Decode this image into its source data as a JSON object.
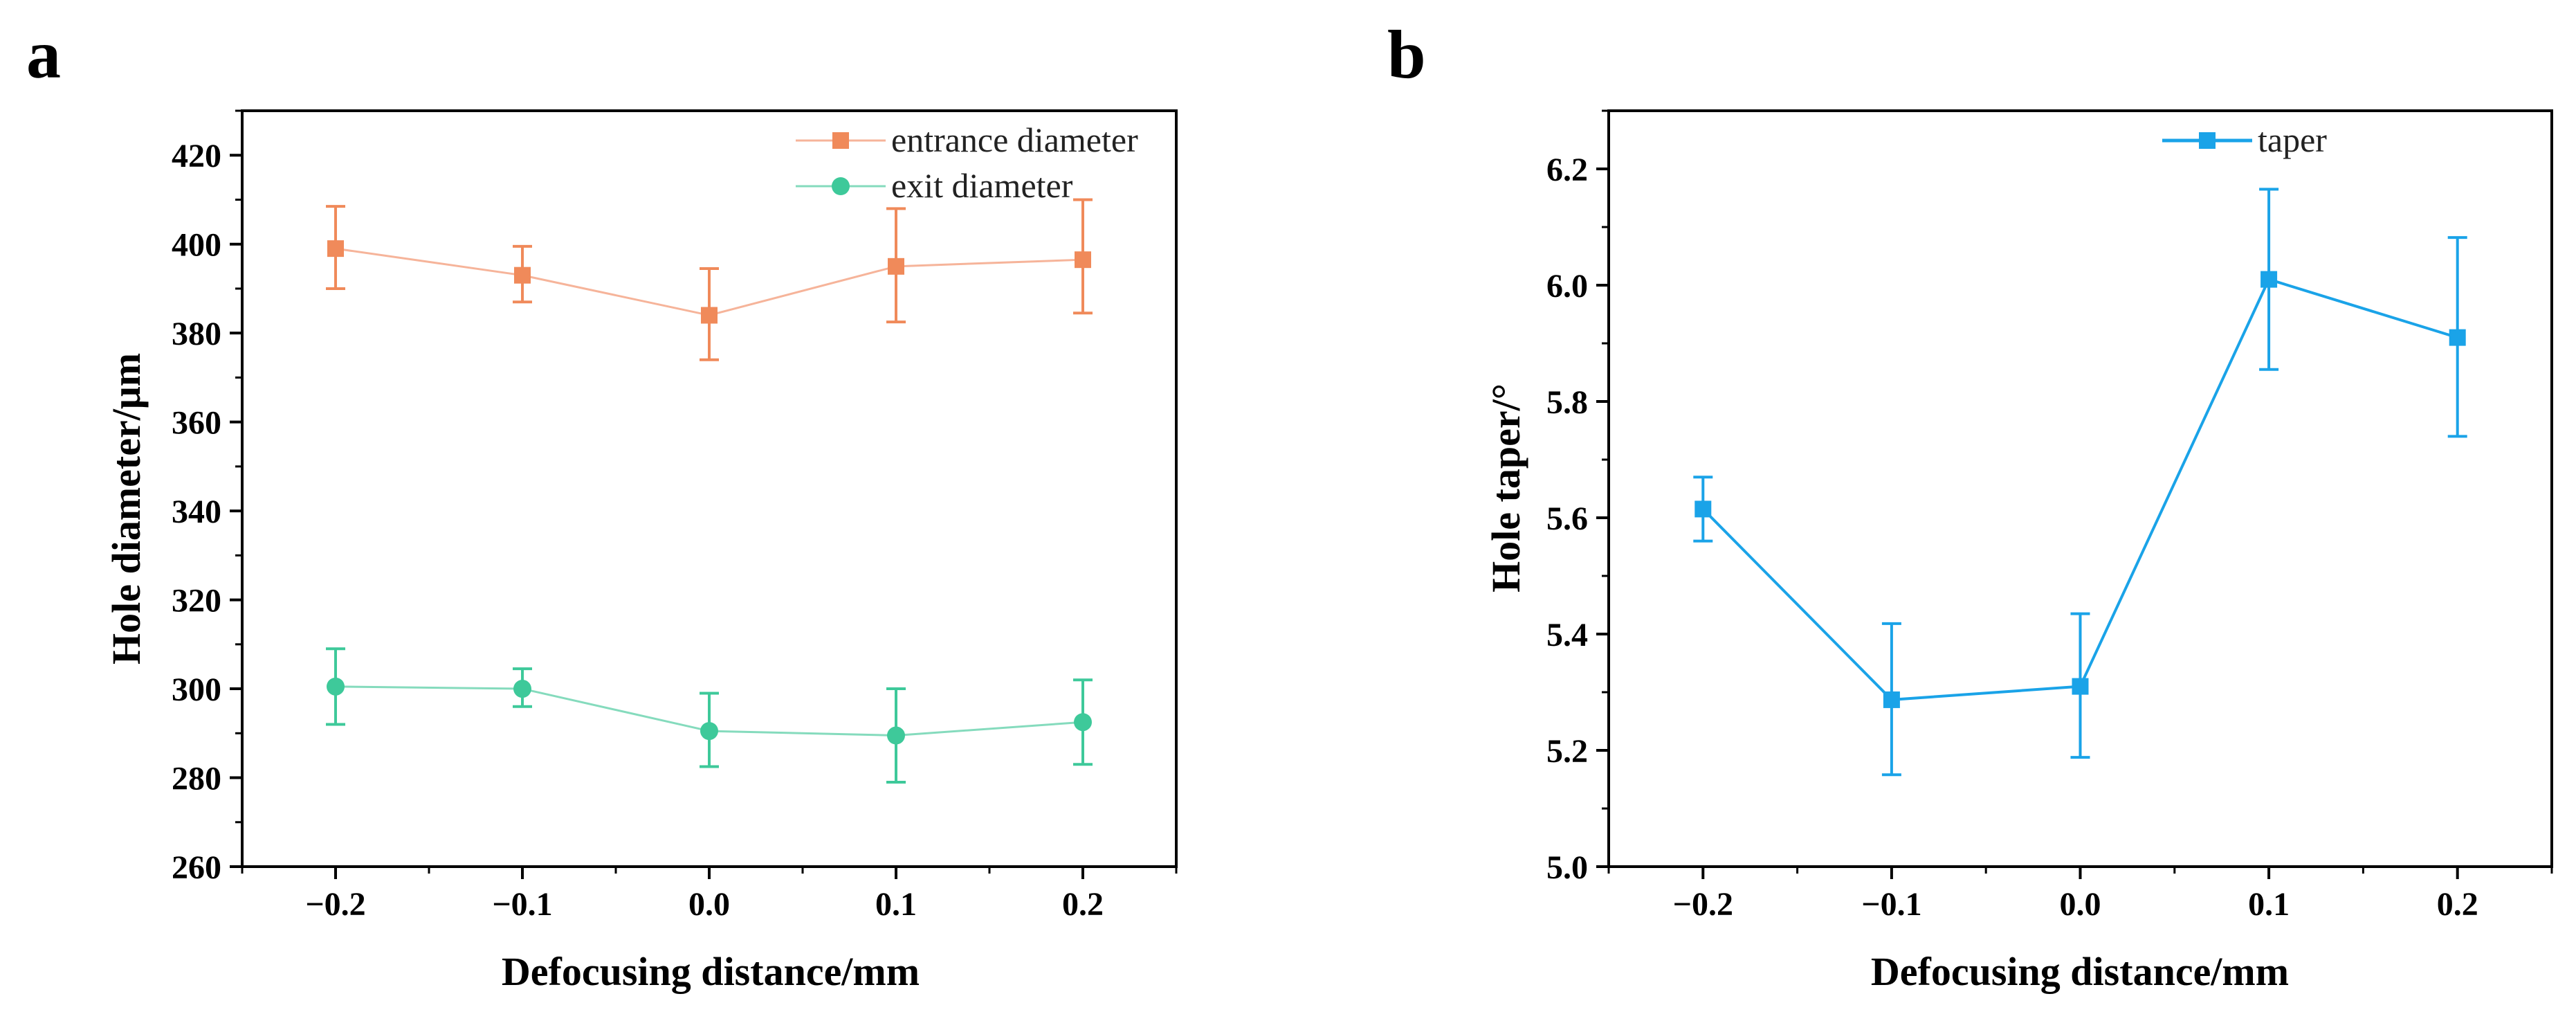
{
  "figure": {
    "panel_labels": [
      "a",
      "b"
    ]
  },
  "chart_data": [
    {
      "type": "line",
      "panel": "a",
      "xlabel": "Defocusing distance/mm",
      "ylabel": "Hole diameter/μm",
      "xlim": [
        -0.25,
        0.25
      ],
      "ylim": [
        260,
        430
      ],
      "x_ticks": [
        -0.2,
        -0.1,
        0.0,
        0.1,
        0.2
      ],
      "x_tick_labels": [
        "−0.2",
        "−0.1",
        "0.0",
        "0.1",
        "0.2"
      ],
      "y_ticks": [
        260,
        280,
        300,
        320,
        340,
        360,
        380,
        400,
        420
      ],
      "y_tick_labels": [
        "260",
        "280",
        "300",
        "320",
        "340",
        "360",
        "380",
        "400",
        "420"
      ],
      "legend_position": "top-right",
      "series": [
        {
          "name": "entrance diameter",
          "marker": "square",
          "color": "#f08a5a",
          "line_color": "#f6b49a",
          "x": [
            -0.2,
            -0.1,
            0.0,
            0.1,
            0.2
          ],
          "values": [
            399,
            393,
            384,
            395,
            396.5
          ],
          "err_low": [
            390,
            387,
            374,
            382.5,
            384.5
          ],
          "err_high": [
            408.5,
            399.5,
            394.5,
            408,
            410
          ]
        },
        {
          "name": "exit diameter",
          "marker": "circle",
          "color": "#3ec99a",
          "line_color": "#85dbbd",
          "x": [
            -0.2,
            -0.1,
            0.0,
            0.1,
            0.2
          ],
          "values": [
            300.5,
            300,
            290.5,
            289.5,
            292.5
          ],
          "err_low": [
            292,
            296,
            282.5,
            279,
            283
          ],
          "err_high": [
            309,
            304.5,
            299,
            300,
            302
          ]
        }
      ]
    },
    {
      "type": "line",
      "panel": "b",
      "xlabel": "Defocusing distance/mm",
      "ylabel": "Hole taper/°",
      "xlim": [
        -0.25,
        0.25
      ],
      "ylim": [
        5.0,
        6.3
      ],
      "x_ticks": [
        -0.2,
        -0.1,
        0.0,
        0.1,
        0.2
      ],
      "x_tick_labels": [
        "−0.2",
        "−0.1",
        "0.0",
        "0.1",
        "0.2"
      ],
      "y_ticks": [
        5.0,
        5.2,
        5.4,
        5.6,
        5.8,
        6.0,
        6.2
      ],
      "y_tick_labels": [
        "5.0",
        "5.2",
        "5.4",
        "5.6",
        "5.8",
        "6.0",
        "6.2"
      ],
      "legend_position": "top-center",
      "series": [
        {
          "name": "taper",
          "marker": "square",
          "color": "#1aa3e8",
          "line_color": "#1aa3e8",
          "x": [
            -0.2,
            -0.1,
            0.0,
            0.1,
            0.2
          ],
          "values": [
            5.615,
            5.287,
            5.31,
            6.01,
            5.91
          ],
          "err_low": [
            5.56,
            5.158,
            5.188,
            5.855,
            5.74
          ],
          "err_high": [
            5.67,
            5.418,
            5.435,
            6.165,
            6.082
          ]
        }
      ]
    }
  ]
}
